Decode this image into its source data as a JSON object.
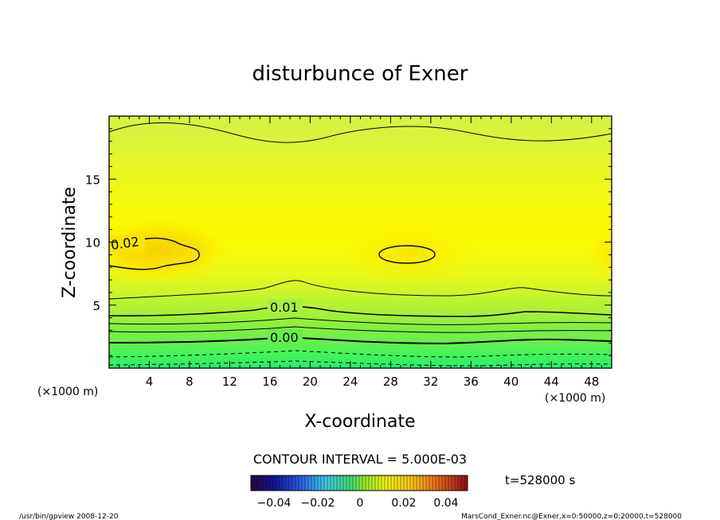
{
  "chart_data": {
    "type": "contour",
    "title": "disturbunce of Exner",
    "xlabel": "X-coordinate",
    "ylabel": "Z-coordinate",
    "x_unit": "(×1000 m)",
    "x_ticks": [
      4,
      8,
      12,
      16,
      20,
      24,
      28,
      32,
      36,
      40,
      44,
      48
    ],
    "y_ticks": [
      5,
      10,
      15
    ],
    "xlim": [
      0,
      50
    ],
    "ylim": [
      0,
      20
    ],
    "contour_labels": [
      "0.02",
      "0.01",
      "0.00"
    ],
    "contour_interval_text": "CONTOUR INTERVAL = 5.000E-03",
    "colorbar_ticks": [
      "−0.04",
      "−0.02",
      "0",
      "0.02",
      "0.04"
    ],
    "time_text": "t=528000 s",
    "footer_left": "/usr/bin/gpview   2008-12-20",
    "footer_right": "MarsCond_Exner.nc@Exner,x=0:50000,z=0:20000,t=528000"
  }
}
